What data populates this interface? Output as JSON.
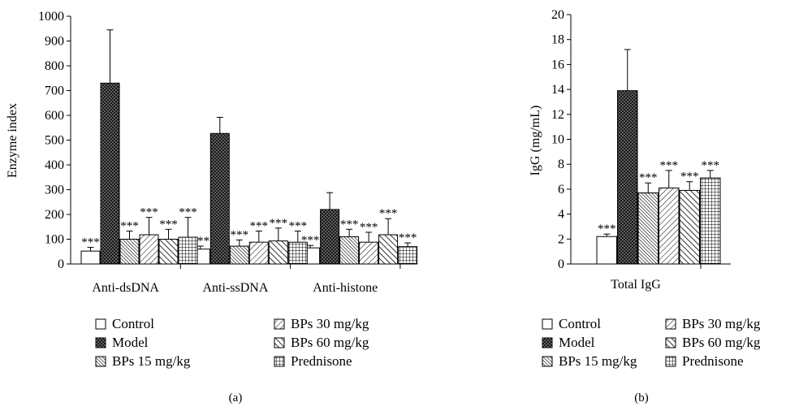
{
  "series": [
    {
      "name": "Control",
      "pattern": "white"
    },
    {
      "name": "Model",
      "pattern": "dots"
    },
    {
      "name": "BPs 15 mg/kg",
      "pattern": "diag-dense"
    },
    {
      "name": "BPs 30 mg/kg",
      "pattern": "diag-right"
    },
    {
      "name": "BPs 60 mg/kg",
      "pattern": "diag-left"
    },
    {
      "name": "Prednisone",
      "pattern": "grid"
    }
  ],
  "chart_data": [
    {
      "id": "a",
      "type": "bar",
      "panel_label": "(a)",
      "title": "",
      "ylabel": "Enzyme index",
      "xlabel": "",
      "ylim": [
        0,
        1000
      ],
      "yticks": [
        0,
        100,
        200,
        300,
        400,
        500,
        600,
        700,
        800,
        900,
        1000
      ],
      "categories": [
        "Anti-dsDNA",
        "Anti-ssDNA",
        "Anti-histone"
      ],
      "series": [
        {
          "name": "Control",
          "values": [
            52,
            60,
            65
          ],
          "errors": [
            15,
            12,
            10
          ],
          "marks": [
            "***",
            "***",
            "***"
          ]
        },
        {
          "name": "Model",
          "values": [
            730,
            527,
            220
          ],
          "errors": [
            215,
            65,
            68
          ],
          "marks": [
            "",
            "",
            ""
          ]
        },
        {
          "name": "BPs 15 mg/kg",
          "values": [
            100,
            72,
            110
          ],
          "errors": [
            33,
            25,
            30
          ],
          "marks": [
            "***",
            "***",
            "***"
          ]
        },
        {
          "name": "BPs 30 mg/kg",
          "values": [
            118,
            88,
            88
          ],
          "errors": [
            70,
            45,
            40
          ],
          "marks": [
            "***",
            "***",
            "***"
          ]
        },
        {
          "name": "BPs 60 mg/kg",
          "values": [
            100,
            93,
            118
          ],
          "errors": [
            40,
            52,
            65
          ],
          "marks": [
            "***",
            "***",
            "***"
          ]
        },
        {
          "name": "Prednisone",
          "values": [
            108,
            88,
            70
          ],
          "errors": [
            80,
            45,
            15
          ],
          "marks": [
            "***",
            "***",
            "***"
          ]
        }
      ],
      "legend_position": "bottom"
    },
    {
      "id": "b",
      "type": "bar",
      "panel_label": "(b)",
      "title": "",
      "ylabel": "IgG (mg/mL)",
      "xlabel": "",
      "ylim": [
        0,
        20
      ],
      "yticks": [
        0,
        2,
        4,
        6,
        8,
        10,
        12,
        14,
        16,
        18,
        20
      ],
      "categories": [
        "Total IgG"
      ],
      "series": [
        {
          "name": "Control",
          "values": [
            2.2
          ],
          "errors": [
            0.2
          ],
          "marks": [
            "***"
          ]
        },
        {
          "name": "Model",
          "values": [
            13.9
          ],
          "errors": [
            3.3
          ],
          "marks": [
            ""
          ]
        },
        {
          "name": "BPs 15 mg/kg",
          "values": [
            5.7
          ],
          "errors": [
            0.8
          ],
          "marks": [
            "***"
          ]
        },
        {
          "name": "BPs 30 mg/kg",
          "values": [
            6.1
          ],
          "errors": [
            1.4
          ],
          "marks": [
            "***"
          ]
        },
        {
          "name": "BPs 60 mg/kg",
          "values": [
            5.9
          ],
          "errors": [
            0.7
          ],
          "marks": [
            "***"
          ]
        },
        {
          "name": "Prednisone",
          "values": [
            6.9
          ],
          "errors": [
            0.6
          ],
          "marks": [
            "***"
          ]
        }
      ],
      "legend_position": "bottom"
    }
  ]
}
